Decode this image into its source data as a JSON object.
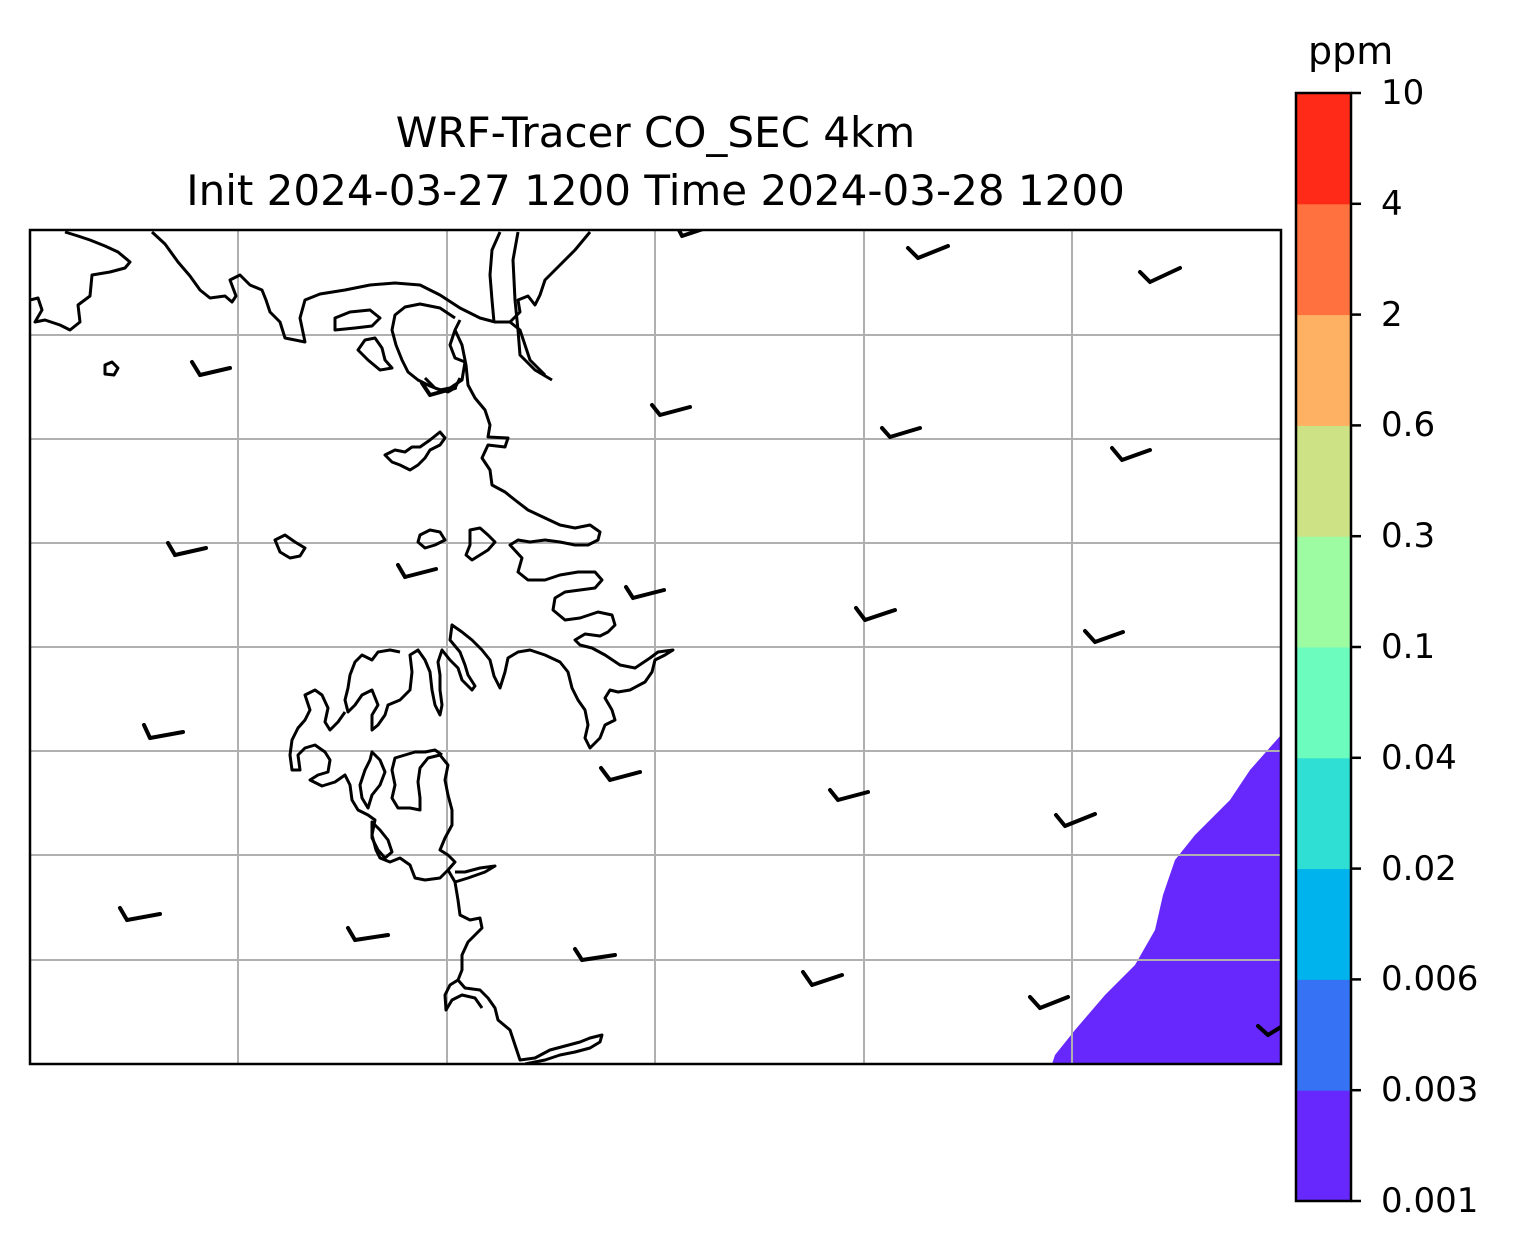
{
  "title": {
    "line1": "WRF-Tracer CO_SEC 4km",
    "line2": "Init 2024-03-27 1200 Time 2024-03-28 1200"
  },
  "colorbar": {
    "unit": "ppm",
    "levels": [
      "0.001",
      "0.003",
      "0.006",
      "0.02",
      "0.04",
      "0.1",
      "0.3",
      "0.6",
      "2",
      "4",
      "10"
    ],
    "colors": [
      "#6628fd",
      "#3573f4",
      "#00b3ec",
      "#2fdfd4",
      "#6bfcbe",
      "#9dfca1",
      "#cde285",
      "#feb163",
      "#ff713e",
      "#ff2a17"
    ]
  },
  "map": {
    "tracer_field_level": "0.001–0.003",
    "tracer_field_color": "#6628fd",
    "gridline_color": "#b0b0b0",
    "coastline_color": "#000000",
    "wind_barb_color": "#000000"
  }
}
